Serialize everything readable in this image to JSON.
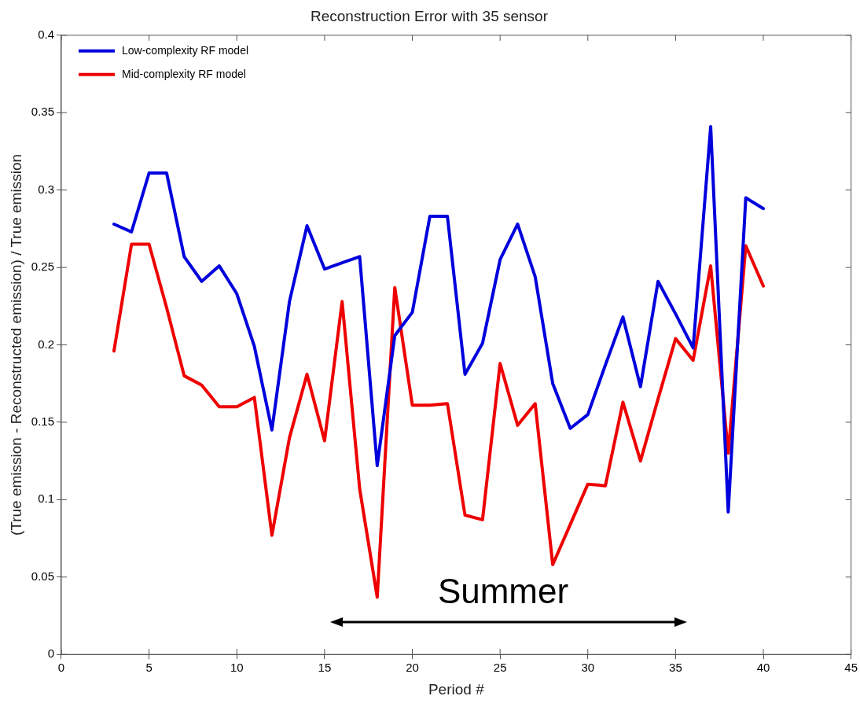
{
  "chart_data": {
    "type": "line",
    "title": "Reconstruction Error with 35 sensor",
    "xlabel": "Period #",
    "ylabel": "(True emission - Reconstructed emission) / True emission",
    "x": [
      3,
      4,
      5,
      6,
      7,
      8,
      9,
      10,
      11,
      12,
      13,
      14,
      15,
      16,
      17,
      18,
      19,
      20,
      21,
      22,
      23,
      24,
      25,
      26,
      27,
      28,
      29,
      30,
      31,
      32,
      33,
      34,
      35,
      36,
      37,
      38,
      39,
      40
    ],
    "series": [
      {
        "name": "Low-complexity RF model",
        "color": "#0000dd",
        "values": [
          0.278,
          0.273,
          0.311,
          0.311,
          0.257,
          0.241,
          0.251,
          0.233,
          0.199,
          0.145,
          0.228,
          0.277,
          0.249,
          0.253,
          0.257,
          0.122,
          0.206,
          0.221,
          0.283,
          0.283,
          0.181,
          0.201,
          0.255,
          0.278,
          0.244,
          0.175,
          0.146,
          0.155,
          0.187,
          0.218,
          0.173,
          0.241,
          0.22,
          0.198,
          0.341,
          0.092,
          0.295,
          0.288
        ]
      },
      {
        "name": "Mid-complexity RF model",
        "color": "#ee0000",
        "values": [
          0.196,
          0.265,
          0.265,
          0.224,
          0.18,
          0.174,
          0.16,
          0.16,
          0.166,
          0.077,
          0.14,
          0.181,
          0.138,
          0.228,
          0.107,
          0.037,
          0.237,
          0.161,
          0.161,
          0.162,
          0.09,
          0.087,
          0.188,
          0.148,
          0.162,
          0.058,
          0.084,
          0.11,
          0.109,
          0.163,
          0.125,
          0.165,
          0.204,
          0.19,
          0.251,
          0.13,
          0.264,
          0.238
        ]
      }
    ],
    "xlim": [
      0,
      45
    ],
    "xticks": [
      0,
      5,
      10,
      15,
      20,
      25,
      30,
      35,
      40,
      45
    ],
    "ylim": [
      0,
      0.4
    ],
    "yticks": [
      0,
      0.05,
      0.1,
      0.15,
      0.2,
      0.25,
      0.3,
      0.35,
      0.4
    ],
    "annotations": [
      "Summer"
    ],
    "grid": false,
    "legend": "top left",
    "marker": "none",
    "line_style": "solid"
  }
}
